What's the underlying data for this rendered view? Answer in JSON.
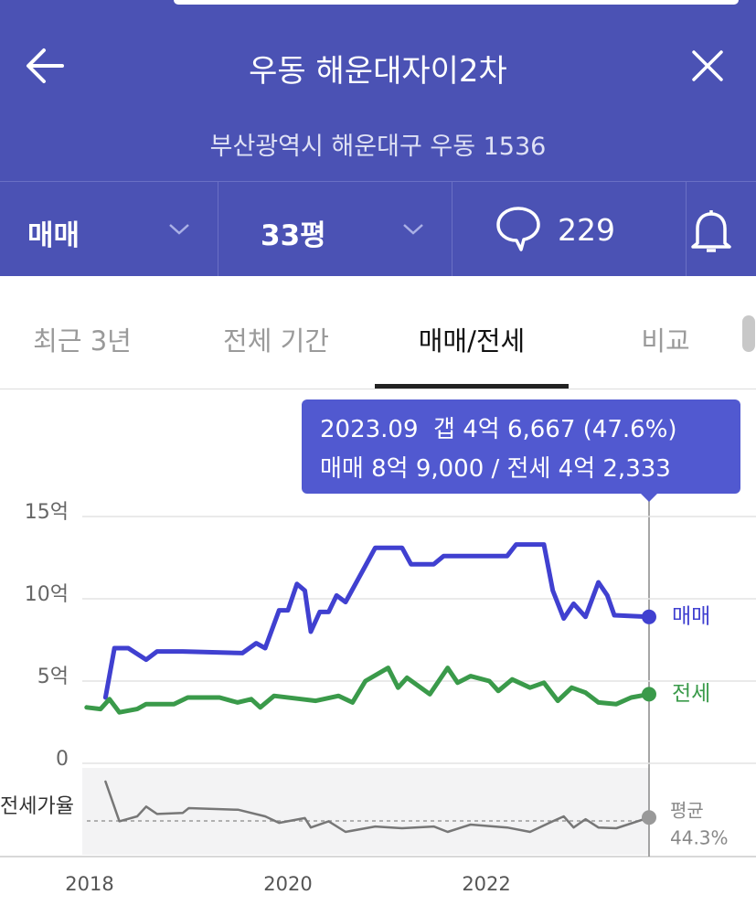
{
  "header": {
    "title": "우동 해운대자이2차",
    "address": "부산광역시 해운대구 우동 1536"
  },
  "filters": {
    "trade_type": "매매",
    "size": "33평",
    "comments": 229
  },
  "tabs": [
    "최근 3년",
    "전체 기간",
    "매매/전세",
    "비교"
  ],
  "tooltip": {
    "lines": [
      "2023.09  갭 4억 6,667 (47.6%)",
      "매매 8억 9,000 / 전세 4억 2,333"
    ]
  },
  "chart_data": [
    {
      "type": "line",
      "xlim": [
        2017.95,
        2024.7
      ],
      "xticks": [
        2018,
        2020,
        2022
      ],
      "ylim": [
        0,
        15
      ],
      "yticks": [
        0,
        {
          "value": 5,
          "label": "5억"
        },
        {
          "value": 10,
          "label": "10억"
        },
        {
          "value": 15,
          "label": "15억"
        }
      ],
      "grid": true,
      "series": [
        {
          "name": "매매",
          "color": "#4040d0",
          "x": [
            2018.16,
            2018.25,
            2018.39,
            2018.57,
            2018.68,
            2018.94,
            2019.54,
            2019.68,
            2019.77,
            2019.91,
            2020.0,
            2020.09,
            2020.17,
            2020.23,
            2020.32,
            2020.41,
            2020.49,
            2020.58,
            2020.78,
            2020.88,
            2021.15,
            2021.24,
            2021.47,
            2021.57,
            2022.21,
            2022.3,
            2022.58,
            2022.67,
            2022.78,
            2022.88,
            2023.0,
            2023.13,
            2023.22,
            2023.29,
            2023.64
          ],
          "values": [
            4.0,
            7.0,
            7.0,
            6.3,
            6.8,
            6.8,
            6.7,
            7.3,
            7.0,
            9.3,
            9.3,
            10.9,
            10.5,
            8.0,
            9.2,
            9.2,
            10.2,
            9.8,
            12.0,
            13.1,
            13.1,
            12.1,
            12.1,
            12.6,
            12.6,
            13.3,
            13.3,
            10.5,
            8.8,
            9.7,
            8.9,
            11.0,
            10.2,
            9.0,
            8.9
          ]
        },
        {
          "name": "전세",
          "color": "#3a9a4a",
          "x": [
            2017.97,
            2018.11,
            2018.2,
            2018.3,
            2018.48,
            2018.57,
            2018.85,
            2018.99,
            2019.31,
            2019.49,
            2019.63,
            2019.72,
            2019.86,
            2020.14,
            2020.28,
            2020.51,
            2020.65,
            2020.78,
            2021.01,
            2021.11,
            2021.2,
            2021.43,
            2021.61,
            2021.71,
            2021.84,
            2022.03,
            2022.12,
            2022.26,
            2022.44,
            2022.58,
            2022.72,
            2022.86,
            2023.0,
            2023.13,
            2023.31,
            2023.46,
            2023.64
          ],
          "values": [
            3.4,
            3.3,
            3.9,
            3.1,
            3.3,
            3.6,
            3.6,
            4.0,
            4.0,
            3.7,
            3.9,
            3.4,
            4.1,
            3.9,
            3.8,
            4.1,
            3.7,
            5.0,
            5.8,
            4.6,
            5.2,
            4.2,
            5.8,
            4.9,
            5.3,
            5.0,
            4.4,
            5.1,
            4.6,
            4.9,
            3.8,
            4.6,
            4.3,
            3.7,
            3.6,
            4.0,
            4.2
          ]
        }
      ]
    },
    {
      "type": "line",
      "xlim": [
        2017.95,
        2024.7
      ],
      "ylim": [
        12,
        95
      ],
      "series": [
        {
          "name": "전세가율",
          "color": "#777777",
          "x": [
            2018.16,
            2018.3,
            2018.48,
            2018.57,
            2018.68,
            2018.94,
            2019.0,
            2019.5,
            2019.77,
            2019.91,
            2020.17,
            2020.23,
            2020.41,
            2020.58,
            2020.88,
            2021.15,
            2021.47,
            2021.61,
            2021.84,
            2022.21,
            2022.44,
            2022.67,
            2022.78,
            2022.88,
            2023.0,
            2023.13,
            2023.31,
            2023.64
          ],
          "values": [
            82,
            44,
            48.7,
            58,
            51,
            52,
            56.6,
            55,
            48.7,
            42.5,
            47,
            38,
            44,
            33.8,
            39,
            37.3,
            39,
            33.8,
            40.8,
            38,
            33.8,
            44,
            48.7,
            38,
            46,
            38,
            37.3,
            47.6
          ]
        }
      ],
      "reference_line": {
        "name": "평균",
        "value": 44.3,
        "value_label": "44.3%"
      }
    }
  ]
}
